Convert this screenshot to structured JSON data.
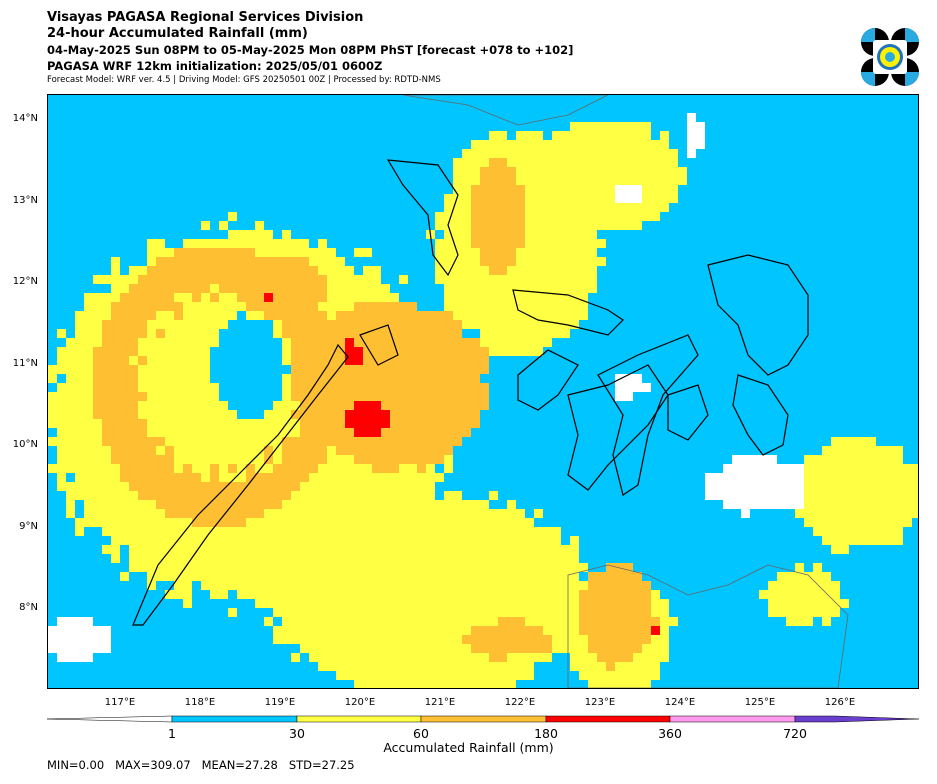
{
  "header": {
    "line1": "Visayas PAGASA Regional Services Division",
    "line2": "24-hour Accumulated Rainfall (mm)",
    "line3": "04-May-2025 Sun 08PM to 05-May-2025 Mon 08PM PhST [forecast +078 to +102]",
    "line4": "PAGASA WRF 12km initialization: 2025/05/01 0600Z",
    "line5": "Forecast Model: WRF ver. 4.5 | Driving Model: GFS 20250501 00Z | Processed by: RDTD-NMS"
  },
  "axes": {
    "y_ticks": [
      {
        "label": "14°N",
        "value": 14
      },
      {
        "label": "13°N",
        "value": 13
      },
      {
        "label": "12°N",
        "value": 12
      },
      {
        "label": "11°N",
        "value": 11
      },
      {
        "label": "10°N",
        "value": 10
      },
      {
        "label": "9°N",
        "value": 9
      },
      {
        "label": "8°N",
        "value": 8
      }
    ],
    "x_ticks": [
      {
        "label": "117°E",
        "value": 117
      },
      {
        "label": "118°E",
        "value": 118
      },
      {
        "label": "119°E",
        "value": 119
      },
      {
        "label": "120°E",
        "value": 120
      },
      {
        "label": "121°E",
        "value": 121
      },
      {
        "label": "122°E",
        "value": 122
      },
      {
        "label": "123°E",
        "value": 123
      },
      {
        "label": "124°E",
        "value": 124
      },
      {
        "label": "125°E",
        "value": 125
      },
      {
        "label": "126°E",
        "value": 126
      }
    ]
  },
  "colorbar": {
    "title": "Accumulated Rainfall (mm)",
    "ticks": [
      "1",
      "30",
      "60",
      "180",
      "360",
      "720"
    ],
    "colors": {
      "none": "#ffffff",
      "light": "#00c5ff",
      "moderate": "#ffff44",
      "heavy": "#ffbf33",
      "intense": "#ff0000",
      "torrential": "#ff99ee",
      "extreme": "#6a3fd0"
    }
  },
  "stats": {
    "text": "MIN=0.00   MAX=309.07   MEAN=27.28   STD=27.25"
  },
  "logo": {
    "icon": "pagasa-seal-icon"
  }
}
